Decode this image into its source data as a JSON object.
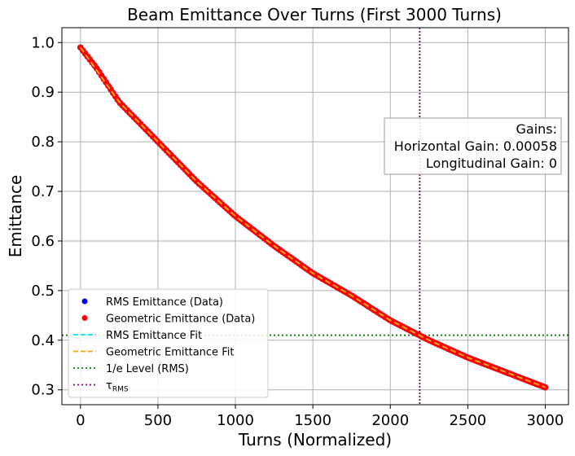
{
  "chart_data": {
    "type": "line",
    "title": "Beam Emittance Over Turns (First 3000 Turns)",
    "xlabel": "Turns (Normalized)",
    "ylabel": "Emittance",
    "xlim": [
      -120,
      3150
    ],
    "ylim": [
      0.27,
      1.03
    ],
    "xticks": [
      0,
      500,
      1000,
      1500,
      2000,
      2500,
      3000
    ],
    "xtick_labels": [
      "0",
      "500",
      "1000",
      "1500",
      "2000",
      "2500",
      "3000"
    ],
    "yticks": [
      0.3,
      0.4,
      0.5,
      0.6,
      0.7,
      0.8,
      0.9,
      1.0
    ],
    "ytick_labels": [
      "0.3",
      "0.4",
      "0.5",
      "0.6",
      "0.7",
      "0.8",
      "0.9",
      "1.0"
    ],
    "grid": true,
    "legend_position": "lower-left",
    "series": [
      {
        "name": "RMS Emittance (Data)",
        "style": "markers",
        "color": "#0000ff",
        "x": [
          0,
          100,
          250,
          500,
          750,
          1000,
          1250,
          1500,
          1750,
          2000,
          2250,
          2500,
          2750,
          3000
        ],
        "y": [
          0.99,
          0.95,
          0.88,
          0.8,
          0.72,
          0.65,
          0.59,
          0.535,
          0.49,
          0.44,
          0.4,
          0.365,
          0.335,
          0.305
        ]
      },
      {
        "name": "Geometric Emittance (Data)",
        "style": "markers",
        "color": "#ff0000",
        "x": [
          0,
          100,
          250,
          500,
          750,
          1000,
          1250,
          1500,
          1750,
          2000,
          2250,
          2500,
          2750,
          3000
        ],
        "y": [
          0.99,
          0.95,
          0.88,
          0.8,
          0.72,
          0.65,
          0.59,
          0.535,
          0.49,
          0.44,
          0.4,
          0.365,
          0.335,
          0.305
        ]
      },
      {
        "name": "RMS Emittance Fit",
        "style": "dashed",
        "color": "#00e5ee",
        "x": [
          0,
          250,
          500,
          750,
          1000,
          1250,
          1500,
          1750,
          2000,
          2250,
          2500,
          2750,
          3000
        ],
        "y": [
          0.99,
          0.88,
          0.8,
          0.72,
          0.65,
          0.59,
          0.535,
          0.49,
          0.44,
          0.4,
          0.365,
          0.335,
          0.305
        ]
      },
      {
        "name": "Geometric Emittance Fit",
        "style": "dashed",
        "color": "#ffa500",
        "x": [
          0,
          250,
          500,
          750,
          1000,
          1250,
          1500,
          1750,
          2000,
          2250,
          2500,
          2750,
          3000
        ],
        "y": [
          0.99,
          0.88,
          0.8,
          0.72,
          0.65,
          0.59,
          0.535,
          0.49,
          0.44,
          0.4,
          0.365,
          0.335,
          0.305
        ]
      }
    ],
    "reference_lines": [
      {
        "name": "1/e Level (RMS)",
        "orientation": "horizontal",
        "value": 0.41,
        "color": "#008000",
        "style": "dotted"
      },
      {
        "name_base": "τ",
        "name_sub": "RMS",
        "orientation": "vertical",
        "value": 2190,
        "color": "#800080",
        "style": "dotted"
      }
    ],
    "annotation": {
      "lines": [
        "Gains:",
        "Horizontal Gain: 0.00058",
        "Longitudinal Gain: 0"
      ],
      "position": "upper-right"
    }
  }
}
